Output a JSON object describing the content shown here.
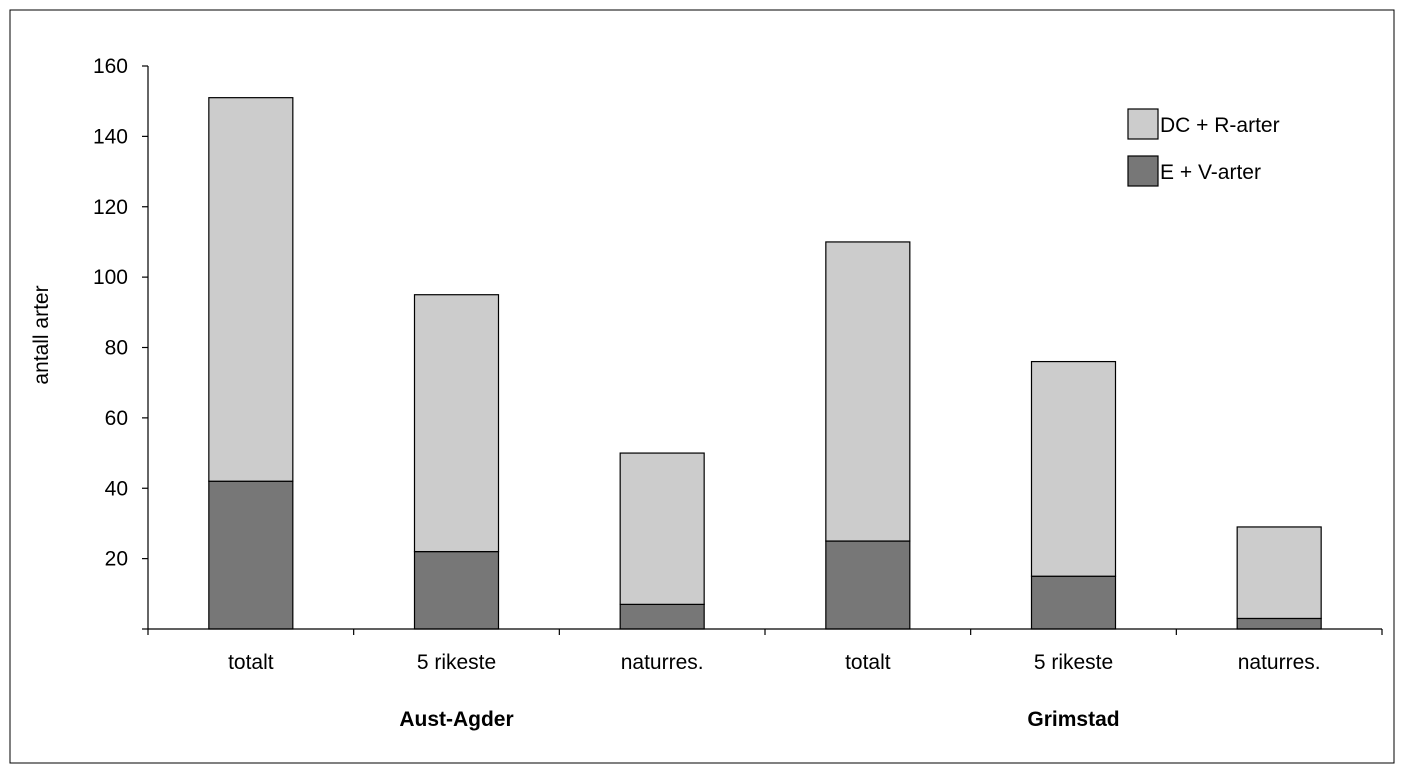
{
  "chart_data": {
    "type": "bar",
    "stacked": true,
    "categories": [
      "totalt",
      "5 rikeste",
      "naturres.",
      "totalt",
      "5 rikeste",
      "naturres."
    ],
    "groups": [
      {
        "label": "Aust-Agder",
        "categories": [
          0,
          1,
          2
        ]
      },
      {
        "label": "Grimstad",
        "categories": [
          3,
          4,
          5
        ]
      }
    ],
    "series": [
      {
        "name": "E + V-arter",
        "values": [
          42,
          22,
          7,
          25,
          15,
          3
        ],
        "color": "#777777"
      },
      {
        "name": "DC + R-arter",
        "values": [
          109,
          73,
          43,
          85,
          61,
          26
        ],
        "color": "#cccccc"
      }
    ],
    "legend_order": [
      1,
      0
    ],
    "title": "",
    "xlabel": "",
    "ylabel": "antall arter",
    "ylim": [
      0,
      160
    ],
    "yticks": [
      20,
      40,
      60,
      80,
      100,
      120,
      140,
      160
    ],
    "grid": false,
    "legend_position": "top-right"
  }
}
